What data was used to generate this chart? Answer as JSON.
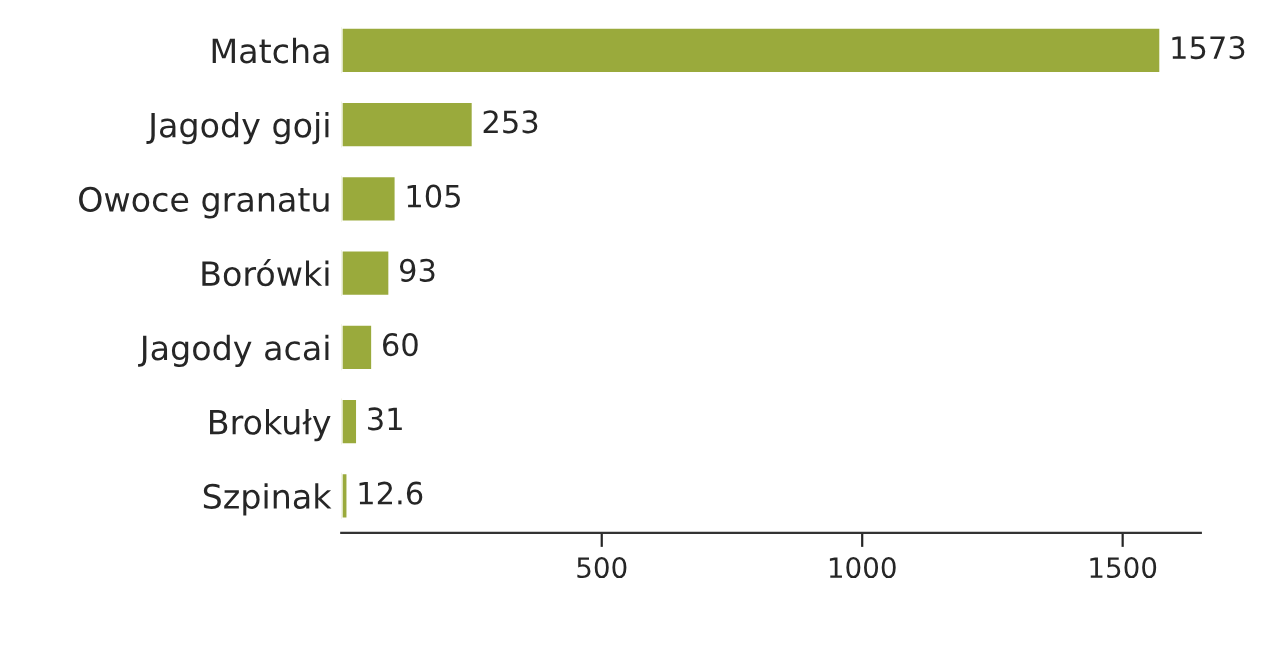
{
  "chart_data": {
    "type": "bar",
    "orientation": "horizontal",
    "categories": [
      "Matcha",
      "Jagody goji",
      "Owoce granatu",
      "Borówki",
      "Jagody acai",
      "Brokuły",
      "Szpinak"
    ],
    "values": [
      1573,
      253,
      105,
      93,
      60,
      31,
      12.6
    ],
    "color": "#9aaa3c",
    "xlim": [
      0,
      1650
    ],
    "xticks": [
      500,
      1000,
      1500
    ],
    "data_labels": true,
    "grid": false
  }
}
